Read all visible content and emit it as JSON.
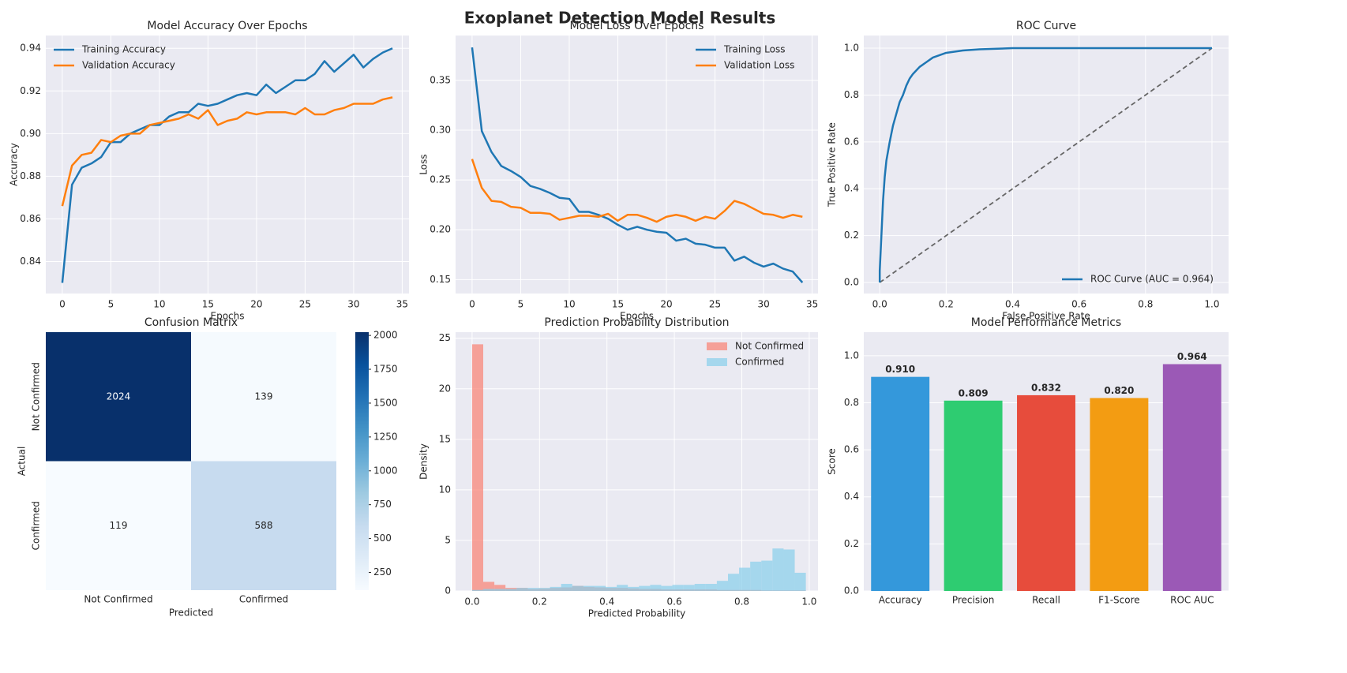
{
  "title": "Exoplanet Detection Model Results",
  "chart_data": [
    {
      "type": "line",
      "title": "Model Accuracy Over Epochs",
      "xlabel": "Epochs",
      "ylabel": "Accuracy",
      "x": [
        0,
        1,
        2,
        3,
        4,
        5,
        6,
        7,
        8,
        9,
        10,
        11,
        12,
        13,
        14,
        15,
        16,
        17,
        18,
        19,
        20,
        21,
        22,
        23,
        24,
        25,
        26,
        27,
        28,
        29,
        30,
        31,
        32,
        33,
        34
      ],
      "series": [
        {
          "name": "Training Accuracy",
          "color": "#1f77b4",
          "values": [
            0.83,
            0.876,
            0.884,
            0.886,
            0.889,
            0.896,
            0.896,
            0.9,
            0.902,
            0.904,
            0.904,
            0.908,
            0.91,
            0.91,
            0.914,
            0.913,
            0.914,
            0.916,
            0.918,
            0.919,
            0.918,
            0.923,
            0.919,
            0.922,
            0.925,
            0.925,
            0.928,
            0.934,
            0.929,
            0.933,
            0.937,
            0.931,
            0.935,
            0.938,
            0.94
          ]
        },
        {
          "name": "Validation Accuracy",
          "color": "#ff7f0e",
          "values": [
            0.866,
            0.885,
            0.89,
            0.891,
            0.897,
            0.896,
            0.899,
            0.9,
            0.9,
            0.904,
            0.905,
            0.906,
            0.907,
            0.909,
            0.907,
            0.911,
            0.904,
            0.906,
            0.907,
            0.91,
            0.909,
            0.91,
            0.91,
            0.91,
            0.909,
            0.912,
            0.909,
            0.909,
            0.911,
            0.912,
            0.914,
            0.914,
            0.914,
            0.916,
            0.917
          ]
        }
      ],
      "xlim": [
        -1.7,
        35.7
      ],
      "xticks": [
        0,
        5,
        10,
        15,
        20,
        25,
        30,
        35
      ],
      "ylim": [
        0.825,
        0.946
      ],
      "yticks": [
        0.84,
        0.86,
        0.88,
        {
          "value": 0.9,
          "label": "0.90"
        },
        0.92,
        0.94
      ],
      "grid": true,
      "legend": "upper left"
    },
    {
      "type": "line",
      "title": "Model Loss Over Epochs",
      "xlabel": "Epochs",
      "ylabel": "Loss",
      "x": [
        0,
        1,
        2,
        3,
        4,
        5,
        6,
        7,
        8,
        9,
        10,
        11,
        12,
        13,
        14,
        15,
        16,
        17,
        18,
        19,
        20,
        21,
        22,
        23,
        24,
        25,
        26,
        27,
        28,
        29,
        30,
        31,
        32,
        33,
        34
      ],
      "series": [
        {
          "name": "Training Loss",
          "color": "#1f77b4",
          "values": [
            0.383,
            0.299,
            0.278,
            0.264,
            0.259,
            0.253,
            0.244,
            0.241,
            0.237,
            0.232,
            0.231,
            0.218,
            0.218,
            0.215,
            0.211,
            0.205,
            0.2,
            0.203,
            0.2,
            0.198,
            0.197,
            0.189,
            0.191,
            0.186,
            0.185,
            0.182,
            0.182,
            0.169,
            0.173,
            0.167,
            0.163,
            0.166,
            0.161,
            0.158,
            0.147
          ]
        },
        {
          "name": "Validation Loss",
          "color": "#ff7f0e",
          "values": [
            0.271,
            0.242,
            0.229,
            0.228,
            0.223,
            0.222,
            0.217,
            0.217,
            0.216,
            0.21,
            0.212,
            0.214,
            0.214,
            0.213,
            0.216,
            0.209,
            0.215,
            0.215,
            0.212,
            0.208,
            0.213,
            0.215,
            0.213,
            0.209,
            0.213,
            0.211,
            0.219,
            0.229,
            0.226,
            0.221,
            0.216,
            0.215,
            0.212,
            0.215,
            0.213
          ]
        }
      ],
      "xlim": [
        -1.7,
        35.6
      ],
      "xticks": [
        0,
        5,
        10,
        15,
        20,
        25,
        30,
        35
      ],
      "ylim": [
        0.136,
        0.395
      ],
      "yticks": [
        0.15,
        {
          "value": 0.2,
          "label": "0.20"
        },
        0.25,
        {
          "value": 0.3,
          "label": "0.30"
        },
        0.35
      ],
      "grid": true,
      "legend": "upper right"
    },
    {
      "type": "line",
      "title": "ROC Curve",
      "xlabel": "False Positive Rate",
      "ylabel": "True Positive Rate",
      "series": [
        {
          "name": "ROC Curve (AUC = 0.964)",
          "color": "#1f77b4",
          "x": [
            0,
            0,
            0.005,
            0.01,
            0.015,
            0.02,
            0.03,
            0.04,
            0.05,
            0.06,
            0.07,
            0.08,
            0.09,
            0.1,
            0.12,
            0.14,
            0.16,
            0.18,
            0.2,
            0.25,
            0.3,
            0.4,
            1.0
          ],
          "values": [
            0,
            0.05,
            0.2,
            0.35,
            0.45,
            0.52,
            0.6,
            0.67,
            0.72,
            0.77,
            0.8,
            0.84,
            0.87,
            0.89,
            0.92,
            0.94,
            0.96,
            0.97,
            0.98,
            0.99,
            0.995,
            1.0,
            1.0
          ]
        }
      ],
      "reference_line": {
        "x": [
          0,
          1
        ],
        "y": [
          0,
          1
        ],
        "color": "#666666"
      },
      "xlim": [
        -0.048,
        1.05
      ],
      "xticks": [
        {
          "value": 0,
          "label": "0.0"
        },
        0.2,
        0.4,
        0.6,
        0.8,
        {
          "value": 1,
          "label": "1.0"
        }
      ],
      "ylim": [
        -0.047,
        1.054
      ],
      "yticks": [
        {
          "value": 0,
          "label": "0.0"
        },
        0.2,
        0.4,
        0.6,
        0.8,
        {
          "value": 1,
          "label": "1.0"
        }
      ],
      "grid": true,
      "legend": "lower right"
    },
    {
      "type": "heatmap",
      "title": "Confusion Matrix",
      "xlabel": "Predicted",
      "ylabel": "Actual",
      "categories": [
        "Not Confirmed",
        "Confirmed"
      ],
      "values": [
        [
          2024,
          139
        ],
        [
          119,
          588
        ]
      ],
      "colormap": "Blues",
      "clim": [
        119,
        2024
      ],
      "cticks": [
        250,
        500,
        750,
        1000,
        1250,
        1500,
        1750,
        2000
      ]
    },
    {
      "type": "histogram",
      "title": "Prediction Probability Distribution",
      "xlabel": "Predicted Probability",
      "ylabel": "Density",
      "bins": [
        0,
        0.033,
        0.066,
        0.099,
        0.132,
        0.165,
        0.198,
        0.231,
        0.264,
        0.297,
        0.33,
        0.363,
        0.396,
        0.429,
        0.462,
        0.495,
        0.528,
        0.561,
        0.594,
        0.627,
        0.66,
        0.693,
        0.726,
        0.759,
        0.792,
        0.825,
        0.858,
        0.891,
        0.924,
        0.957,
        0.99
      ],
      "series": [
        {
          "name": "Not Confirmed",
          "color": "#fa8072",
          "values": [
            24.4,
            0.9,
            0.6,
            0.3,
            0.3,
            0.2,
            0.25,
            0.3,
            0.35,
            0.5,
            0.4,
            0.35,
            0.3,
            0.3,
            0.25,
            0.2,
            0.2,
            0.15,
            0.15,
            0.15,
            0.15,
            0.15,
            0.1,
            0.1,
            0.1,
            0.1,
            0.05,
            0.05,
            0.05,
            0.05
          ]
        },
        {
          "name": "Confirmed",
          "color": "#87ceeb",
          "values": [
            0.1,
            0.2,
            0.2,
            0.2,
            0.3,
            0.3,
            0.3,
            0.4,
            0.7,
            0.5,
            0.5,
            0.5,
            0.4,
            0.6,
            0.4,
            0.5,
            0.6,
            0.5,
            0.6,
            0.6,
            0.7,
            0.7,
            1.0,
            1.7,
            2.3,
            2.9,
            3.0,
            4.2,
            4.1,
            1.8
          ]
        }
      ],
      "opacity": 0.7,
      "xlim": [
        -0.049,
        1.026
      ],
      "xticks": [
        {
          "value": 0,
          "label": "0.0"
        },
        0.2,
        0.4,
        0.6,
        0.8,
        {
          "value": 1,
          "label": "1.0"
        }
      ],
      "ylim": [
        0,
        25.6
      ],
      "yticks": [
        0,
        5,
        10,
        15,
        20,
        25
      ],
      "grid": true,
      "legend": "upper right"
    },
    {
      "type": "bar",
      "title": "Model Performance Metrics",
      "ylabel": "Score",
      "categories": [
        "Accuracy",
        "Precision",
        "Recall",
        "F1-Score",
        "ROC AUC"
      ],
      "values": [
        0.91,
        0.809,
        0.832,
        0.82,
        0.964
      ],
      "value_labels": [
        "0.910",
        "0.809",
        "0.832",
        "0.820",
        "0.964"
      ],
      "colors": [
        "#3498db",
        "#2ecc71",
        "#e74c3c",
        "#f39c12",
        "#9b59b6"
      ],
      "ylim": [
        0,
        1.1
      ],
      "yticks": [
        {
          "value": 0,
          "label": "0.0"
        },
        0.2,
        0.4,
        0.6,
        0.8,
        {
          "value": 1,
          "label": "1.0"
        }
      ],
      "grid": true
    }
  ]
}
